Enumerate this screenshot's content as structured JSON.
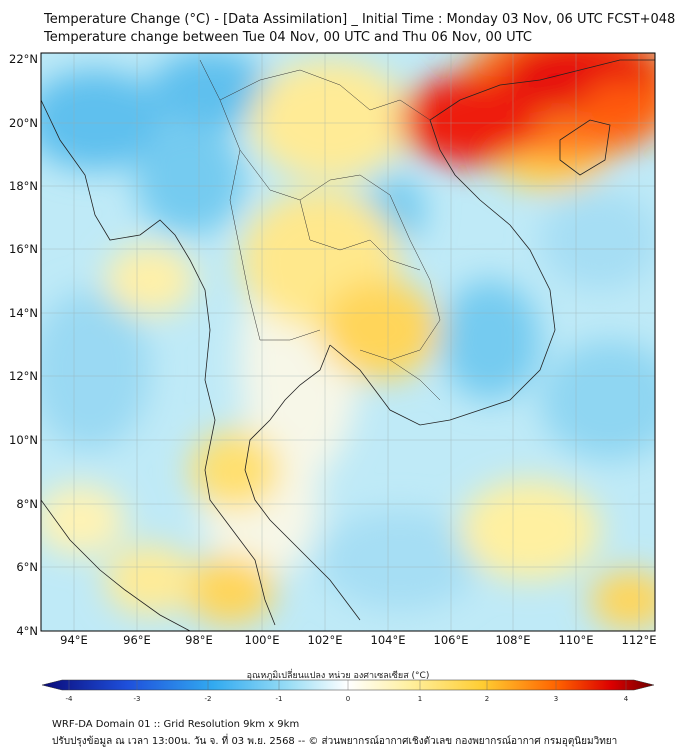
{
  "title": {
    "line1": "Temperature Change (°C) - [Data Assimilation] _ Initial Time : Monday 03 Nov, 06 UTC FCST+048",
    "line2": "Temperature change between Tue 04 Nov, 00 UTC and Thu 06 Nov, 00 UTC"
  },
  "axes": {
    "longitudes": [
      "94°E",
      "96°E",
      "98°E",
      "100°E",
      "102°E",
      "104°E",
      "106°E",
      "108°E",
      "110°E",
      "112°E"
    ],
    "latitudes": [
      "22°N",
      "20°N",
      "18°N",
      "16°N",
      "14°N",
      "12°N",
      "10°N",
      "8°N",
      "6°N",
      "4°N"
    ]
  },
  "colorbar": {
    "title": "อุณหภูมิเปลี่ยนแปลง หน่วย องศาเซลเซียส (°C)",
    "ticks": [
      "-4",
      "-3",
      "-2",
      "-1",
      "0",
      "1",
      "2",
      "3",
      "4"
    ],
    "colors": [
      "#0a0a78",
      "#1e50dc",
      "#32aaf0",
      "#96dcf5",
      "#ffffff",
      "#fff0a0",
      "#ffcd32",
      "#ff6400",
      "#dc0000",
      "#6e0000"
    ]
  },
  "footer": {
    "line1": "WRF-DA Domain 01 :: Grid Resolution 9km x 9km",
    "line2": "ปรับปรุงข้อมูล ณ เวลา 13:00น. วัน จ. ที่ 03 พ.ย. 2568 -- © ส่วนพยากรณ์อากาศเชิงตัวเลข กองพยากรณ์อากาศ กรมอุตุนิยมวิทยา"
  }
}
